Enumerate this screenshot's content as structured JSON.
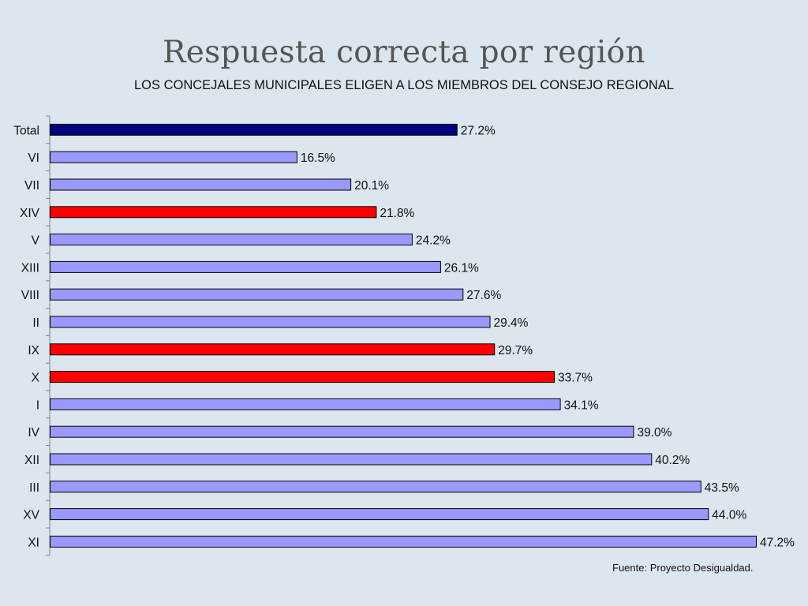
{
  "slide": {
    "title": "Respuesta correcta por región",
    "source": "Fuente: Proyecto Desigualdad."
  },
  "colors": {
    "background": "#dce6ee",
    "total": "#000080",
    "default": "#9999ff",
    "highlight": "#ff0000",
    "outline": "#000000"
  },
  "chart_data": {
    "type": "bar",
    "orientation": "horizontal",
    "title": "LOS CONCEJALES MUNICIPALES ELIGEN A LOS MIEMBROS DEL CONSEJO REGIONAL",
    "xlim": [
      0,
      47.2
    ],
    "grid": false,
    "legend": "none",
    "categories": [
      "Total",
      "VI",
      "VII",
      "XIV",
      "V",
      "XIII",
      "VIII",
      "II",
      "IX",
      "X",
      "I",
      "IV",
      "XII",
      "III",
      "XV",
      "XI"
    ],
    "values": [
      27.2,
      16.5,
      20.1,
      21.8,
      24.2,
      26.1,
      27.6,
      29.4,
      29.7,
      33.7,
      34.1,
      39.0,
      40.2,
      43.5,
      44.0,
      47.2
    ],
    "labels": [
      "27.2%",
      "16.5%",
      "20.1%",
      "21.8%",
      "24.2%",
      "26.1%",
      "27.6%",
      "29.4%",
      "29.7%",
      "33.7%",
      "34.1%",
      "39.0%",
      "40.2%",
      "43.5%",
      "44.0%",
      "47.2%"
    ],
    "bar_color_keys": [
      "total",
      "default",
      "default",
      "highlight",
      "default",
      "default",
      "default",
      "default",
      "highlight",
      "highlight",
      "default",
      "default",
      "default",
      "default",
      "default",
      "default"
    ]
  }
}
